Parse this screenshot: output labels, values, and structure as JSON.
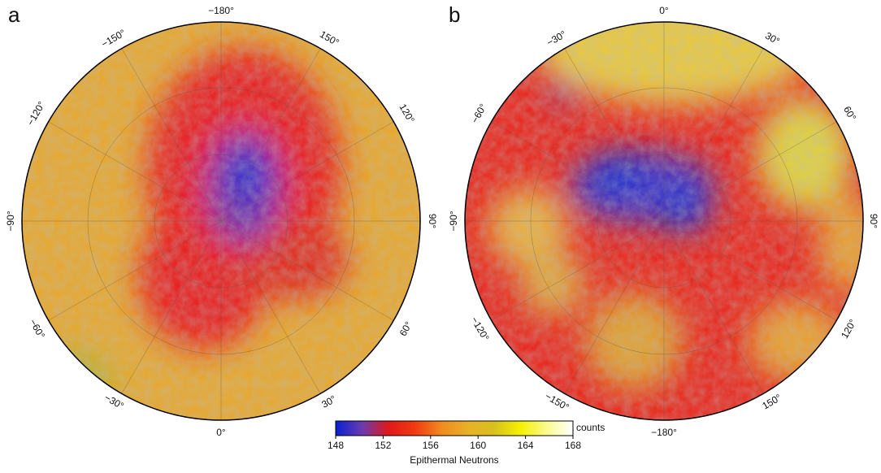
{
  "panels": [
    {
      "label": "a",
      "lon_labels": [
        "−180°",
        "−150°",
        "150°",
        "−120°",
        "120°",
        "−90°",
        "90°",
        "−60°",
        "60°",
        "−30°",
        "30°",
        "0°"
      ]
    },
    {
      "label": "b",
      "lon_labels": [
        "0°",
        "−30°",
        "30°",
        "−60°",
        "60°",
        "−90°",
        "90°",
        "−120°",
        "120°",
        "−150°",
        "150°",
        "−180°"
      ]
    }
  ],
  "colorbar": {
    "title": "Epithermal Neutrons",
    "unit": "counts",
    "lim": [
      148,
      168
    ],
    "ticks": [
      148,
      152,
      156,
      160,
      164,
      168
    ],
    "colors": [
      "#0a1fd0",
      "#6a3ab0",
      "#e01818",
      "#f03a10",
      "#f08a20",
      "#e8b028",
      "#d8c020",
      "#f4f000",
      "#fafa90",
      "#ffffff"
    ]
  }
}
